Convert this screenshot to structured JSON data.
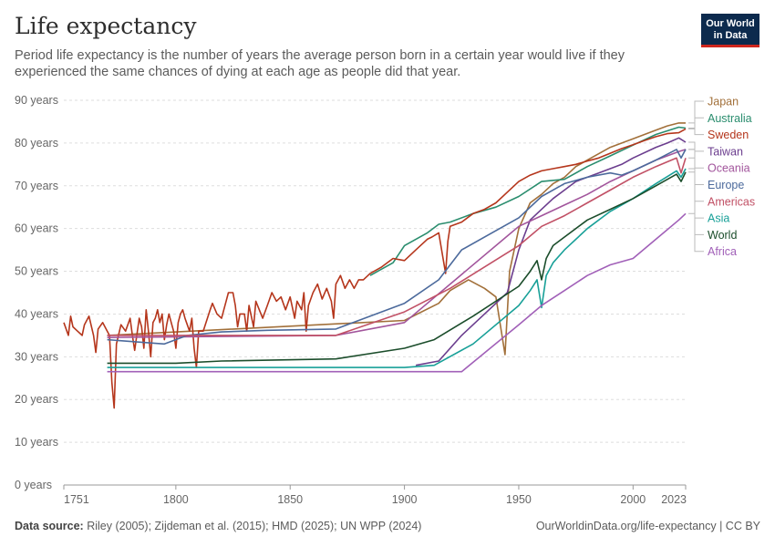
{
  "header": {
    "title": "Life expectancy",
    "subtitle": "Period life expectancy is the number of years the average person born in a certain year would live if they experienced the same chances of dying at each age as people did that year."
  },
  "logo": {
    "line1": "Our World",
    "line2": "in Data"
  },
  "footer": {
    "source_label": "Data source:",
    "source_text": " Riley (2005); Zijdeman et al. (2015); HMD (2025); UN WPP (2024)",
    "credit": "OurWorldinData.org/life-expectancy | CC BY"
  },
  "chart_data": {
    "type": "line",
    "title": "Life expectancy",
    "xlim": [
      1751,
      2023
    ],
    "ylim": [
      0,
      90
    ],
    "x_ticks": [
      1751,
      1800,
      1850,
      1900,
      1950,
      2000,
      2023
    ],
    "y_ticks": [
      {
        "value": 0,
        "label": "0 years"
      },
      {
        "value": 10,
        "label": "10 years"
      },
      {
        "value": 20,
        "label": "20 years"
      },
      {
        "value": 30,
        "label": "30 years"
      },
      {
        "value": 40,
        "label": "40 years"
      },
      {
        "value": 50,
        "label": "50 years"
      },
      {
        "value": 60,
        "label": "60 years"
      },
      {
        "value": 70,
        "label": "70 years"
      },
      {
        "value": 80,
        "label": "80 years"
      },
      {
        "value": 90,
        "label": "90 years"
      }
    ],
    "grid": "horizontal-dashed",
    "legend": "right",
    "series": [
      {
        "name": "Japan",
        "color": "#a2703a",
        "label_value": 87.0,
        "points": [
          [
            1770,
            35
          ],
          [
            1900,
            38.5
          ],
          [
            1915,
            42.5
          ],
          [
            1920,
            45.5
          ],
          [
            1928,
            48
          ],
          [
            1935,
            46
          ],
          [
            1940,
            44
          ],
          [
            1944,
            30.5
          ],
          [
            1946,
            50
          ],
          [
            1950,
            60
          ],
          [
            1955,
            66
          ],
          [
            1960,
            68
          ],
          [
            1965,
            70.5
          ],
          [
            1970,
            72
          ],
          [
            1975,
            74.5
          ],
          [
            1980,
            76
          ],
          [
            1990,
            79
          ],
          [
            2000,
            81
          ],
          [
            2010,
            83
          ],
          [
            2015,
            84
          ],
          [
            2020,
            84.7
          ],
          [
            2023,
            84.7
          ]
        ]
      },
      {
        "name": "Australia",
        "color": "#2a8d6e",
        "label_value": 83.1,
        "points": [
          [
            1885,
            49
          ],
          [
            1895,
            52
          ],
          [
            1900,
            56
          ],
          [
            1910,
            59
          ],
          [
            1915,
            61
          ],
          [
            1920,
            61.5
          ],
          [
            1930,
            63.5
          ],
          [
            1940,
            65
          ],
          [
            1950,
            67.5
          ],
          [
            1960,
            71
          ],
          [
            1970,
            71.5
          ],
          [
            1980,
            74.5
          ],
          [
            1990,
            77
          ],
          [
            2000,
            79.5
          ],
          [
            2010,
            82
          ],
          [
            2020,
            83.7
          ],
          [
            2023,
            83.5
          ]
        ]
      },
      {
        "name": "Sweden",
        "color": "#b5361c",
        "label_value": 79.2,
        "points": [
          [
            1751,
            38
          ],
          [
            1753,
            35
          ],
          [
            1754,
            39.5
          ],
          [
            1755,
            37
          ],
          [
            1757,
            36
          ],
          [
            1759,
            35
          ],
          [
            1760,
            37.5
          ],
          [
            1762,
            39.5
          ],
          [
            1764,
            35
          ],
          [
            1765,
            31
          ],
          [
            1766,
            36.5
          ],
          [
            1768,
            38
          ],
          [
            1770,
            36
          ],
          [
            1771,
            35
          ],
          [
            1772,
            24
          ],
          [
            1773,
            18
          ],
          [
            1774,
            33
          ],
          [
            1776,
            37.5
          ],
          [
            1778,
            36
          ],
          [
            1780,
            39
          ],
          [
            1781,
            35
          ],
          [
            1782,
            31.5
          ],
          [
            1784,
            39
          ],
          [
            1785,
            37
          ],
          [
            1786,
            32
          ],
          [
            1787,
            41
          ],
          [
            1788,
            36
          ],
          [
            1789,
            30
          ],
          [
            1790,
            38
          ],
          [
            1791,
            39
          ],
          [
            1792,
            41
          ],
          [
            1793,
            38
          ],
          [
            1794,
            40
          ],
          [
            1795,
            34
          ],
          [
            1796,
            37.5
          ],
          [
            1797,
            40
          ],
          [
            1798,
            38
          ],
          [
            1799,
            36
          ],
          [
            1800,
            32
          ],
          [
            1801,
            38
          ],
          [
            1802,
            40
          ],
          [
            1803,
            41
          ],
          [
            1804,
            39
          ],
          [
            1805,
            37.5
          ],
          [
            1806,
            36
          ],
          [
            1807,
            39
          ],
          [
            1808,
            32
          ],
          [
            1809,
            27.5
          ],
          [
            1810,
            36
          ],
          [
            1812,
            36
          ],
          [
            1815,
            41
          ],
          [
            1816,
            42.5
          ],
          [
            1818,
            40
          ],
          [
            1820,
            39
          ],
          [
            1822,
            43
          ],
          [
            1823,
            45
          ],
          [
            1825,
            45
          ],
          [
            1826,
            42
          ],
          [
            1827,
            37
          ],
          [
            1828,
            40
          ],
          [
            1830,
            40
          ],
          [
            1831,
            36
          ],
          [
            1832,
            42
          ],
          [
            1834,
            37
          ],
          [
            1835,
            43
          ],
          [
            1838,
            39
          ],
          [
            1840,
            42
          ],
          [
            1842,
            45
          ],
          [
            1844,
            43
          ],
          [
            1846,
            44
          ],
          [
            1848,
            41
          ],
          [
            1850,
            44
          ],
          [
            1852,
            39
          ],
          [
            1853,
            43
          ],
          [
            1855,
            41
          ],
          [
            1856,
            45
          ],
          [
            1857,
            36
          ],
          [
            1858,
            42
          ],
          [
            1860,
            45
          ],
          [
            1862,
            47
          ],
          [
            1864,
            43.5
          ],
          [
            1866,
            46
          ],
          [
            1868,
            43
          ],
          [
            1869,
            39
          ],
          [
            1870,
            47
          ],
          [
            1872,
            49
          ],
          [
            1874,
            46
          ],
          [
            1876,
            48
          ],
          [
            1878,
            46
          ],
          [
            1880,
            48
          ],
          [
            1882,
            48
          ],
          [
            1885,
            49.5
          ],
          [
            1890,
            51
          ],
          [
            1895,
            53
          ],
          [
            1900,
            52.5
          ],
          [
            1905,
            55
          ],
          [
            1910,
            57.5
          ],
          [
            1912,
            58
          ],
          [
            1915,
            59
          ],
          [
            1918,
            49.5
          ],
          [
            1919,
            57
          ],
          [
            1920,
            60.5
          ],
          [
            1925,
            61.5
          ],
          [
            1930,
            63.5
          ],
          [
            1935,
            64.5
          ],
          [
            1940,
            66
          ],
          [
            1945,
            68.5
          ],
          [
            1950,
            71
          ],
          [
            1955,
            72.5
          ],
          [
            1960,
            73.5
          ],
          [
            1965,
            74
          ],
          [
            1970,
            74.5
          ],
          [
            1975,
            75
          ],
          [
            1980,
            75.8
          ],
          [
            1985,
            76.5
          ],
          [
            1990,
            77.6
          ],
          [
            1995,
            78.7
          ],
          [
            2000,
            79.6
          ],
          [
            2005,
            80.6
          ],
          [
            2010,
            81.5
          ],
          [
            2015,
            82.2
          ],
          [
            2020,
            82.4
          ],
          [
            2023,
            83.3
          ]
        ]
      },
      {
        "name": "Taiwan",
        "color": "#6b3d8e",
        "label_value": 81.3,
        "points": [
          [
            1905,
            28
          ],
          [
            1915,
            29
          ],
          [
            1925,
            35
          ],
          [
            1935,
            40
          ],
          [
            1945,
            45
          ],
          [
            1950,
            55
          ],
          [
            1955,
            62
          ],
          [
            1960,
            64.5
          ],
          [
            1965,
            67
          ],
          [
            1970,
            69
          ],
          [
            1975,
            71
          ],
          [
            1980,
            72
          ],
          [
            1985,
            73
          ],
          [
            1990,
            74
          ],
          [
            1995,
            75
          ],
          [
            2000,
            76.5
          ],
          [
            2010,
            79
          ],
          [
            2015,
            80
          ],
          [
            2020,
            81.2
          ],
          [
            2023,
            80.2
          ]
        ]
      },
      {
        "name": "Oceania",
        "color": "#a2559c",
        "label_value": 79.6,
        "points": [
          [
            1770,
            34.5
          ],
          [
            1870,
            35
          ],
          [
            1900,
            38
          ],
          [
            1950,
            60.5
          ],
          [
            1960,
            63
          ],
          [
            1970,
            65.5
          ],
          [
            1980,
            68
          ],
          [
            1990,
            71
          ],
          [
            2000,
            73.5
          ],
          [
            2010,
            76
          ],
          [
            2020,
            78
          ],
          [
            2023,
            78.5
          ]
        ]
      },
      {
        "name": "Europe",
        "color": "#4c6a9c",
        "label_value": 77.6,
        "points": [
          [
            1770,
            34
          ],
          [
            1795,
            33
          ],
          [
            1805,
            35
          ],
          [
            1820,
            35.8
          ],
          [
            1840,
            36.2
          ],
          [
            1870,
            36.5
          ],
          [
            1880,
            38.5
          ],
          [
            1900,
            42.5
          ],
          [
            1915,
            48
          ],
          [
            1925,
            55
          ],
          [
            1950,
            62.5
          ],
          [
            1960,
            67.5
          ],
          [
            1970,
            70.5
          ],
          [
            1980,
            72
          ],
          [
            1990,
            73
          ],
          [
            1995,
            72.5
          ],
          [
            2000,
            73.5
          ],
          [
            2010,
            76
          ],
          [
            2019,
            78.5
          ],
          [
            2021,
            76.5
          ],
          [
            2023,
            78.5
          ]
        ]
      },
      {
        "name": "Americas",
        "color": "#c15065",
        "label_value": 73.6,
        "points": [
          [
            1770,
            35
          ],
          [
            1870,
            35
          ],
          [
            1900,
            40.5
          ],
          [
            1920,
            46
          ],
          [
            1950,
            56
          ],
          [
            1960,
            60.5
          ],
          [
            1970,
            63
          ],
          [
            1980,
            66
          ],
          [
            1990,
            69
          ],
          [
            2000,
            72
          ],
          [
            2010,
            74.5
          ],
          [
            2019,
            76.5
          ],
          [
            2021,
            73
          ],
          [
            2023,
            76.5
          ]
        ]
      },
      {
        "name": "Asia",
        "color": "#18a098",
        "label_value": 69.7,
        "points": [
          [
            1770,
            27.5
          ],
          [
            1900,
            27.5
          ],
          [
            1913,
            28
          ],
          [
            1930,
            33
          ],
          [
            1950,
            42
          ],
          [
            1955,
            45.5
          ],
          [
            1958,
            48
          ],
          [
            1960,
            41.5
          ],
          [
            1962,
            49
          ],
          [
            1965,
            52
          ],
          [
            1970,
            55
          ],
          [
            1980,
            60
          ],
          [
            1990,
            64
          ],
          [
            2000,
            67
          ],
          [
            2010,
            70.5
          ],
          [
            2019,
            73.5
          ],
          [
            2021,
            72
          ],
          [
            2023,
            74
          ]
        ]
      },
      {
        "name": "World",
        "color": "#1b4d2b",
        "label_value": 65.7,
        "points": [
          [
            1770,
            28.5
          ],
          [
            1800,
            28.5
          ],
          [
            1820,
            29
          ],
          [
            1870,
            29.5
          ],
          [
            1900,
            32
          ],
          [
            1913,
            34
          ],
          [
            1930,
            39.5
          ],
          [
            1950,
            46.5
          ],
          [
            1955,
            50
          ],
          [
            1958,
            52.5
          ],
          [
            1960,
            48
          ],
          [
            1962,
            53
          ],
          [
            1965,
            56
          ],
          [
            1970,
            58
          ],
          [
            1980,
            62
          ],
          [
            1990,
            64.5
          ],
          [
            2000,
            67
          ],
          [
            2010,
            70
          ],
          [
            2019,
            72.7
          ],
          [
            2021,
            71
          ],
          [
            2023,
            73.2
          ]
        ]
      },
      {
        "name": "Africa",
        "color": "#a160b8",
        "label_value": 61.8,
        "points": [
          [
            1770,
            26.5
          ],
          [
            1925,
            26.5
          ],
          [
            1950,
            37.5
          ],
          [
            1960,
            42
          ],
          [
            1970,
            45.5
          ],
          [
            1980,
            49
          ],
          [
            1990,
            51.5
          ],
          [
            2000,
            53
          ],
          [
            2010,
            57.5
          ],
          [
            2020,
            62
          ],
          [
            2023,
            63.5
          ]
        ]
      }
    ]
  }
}
